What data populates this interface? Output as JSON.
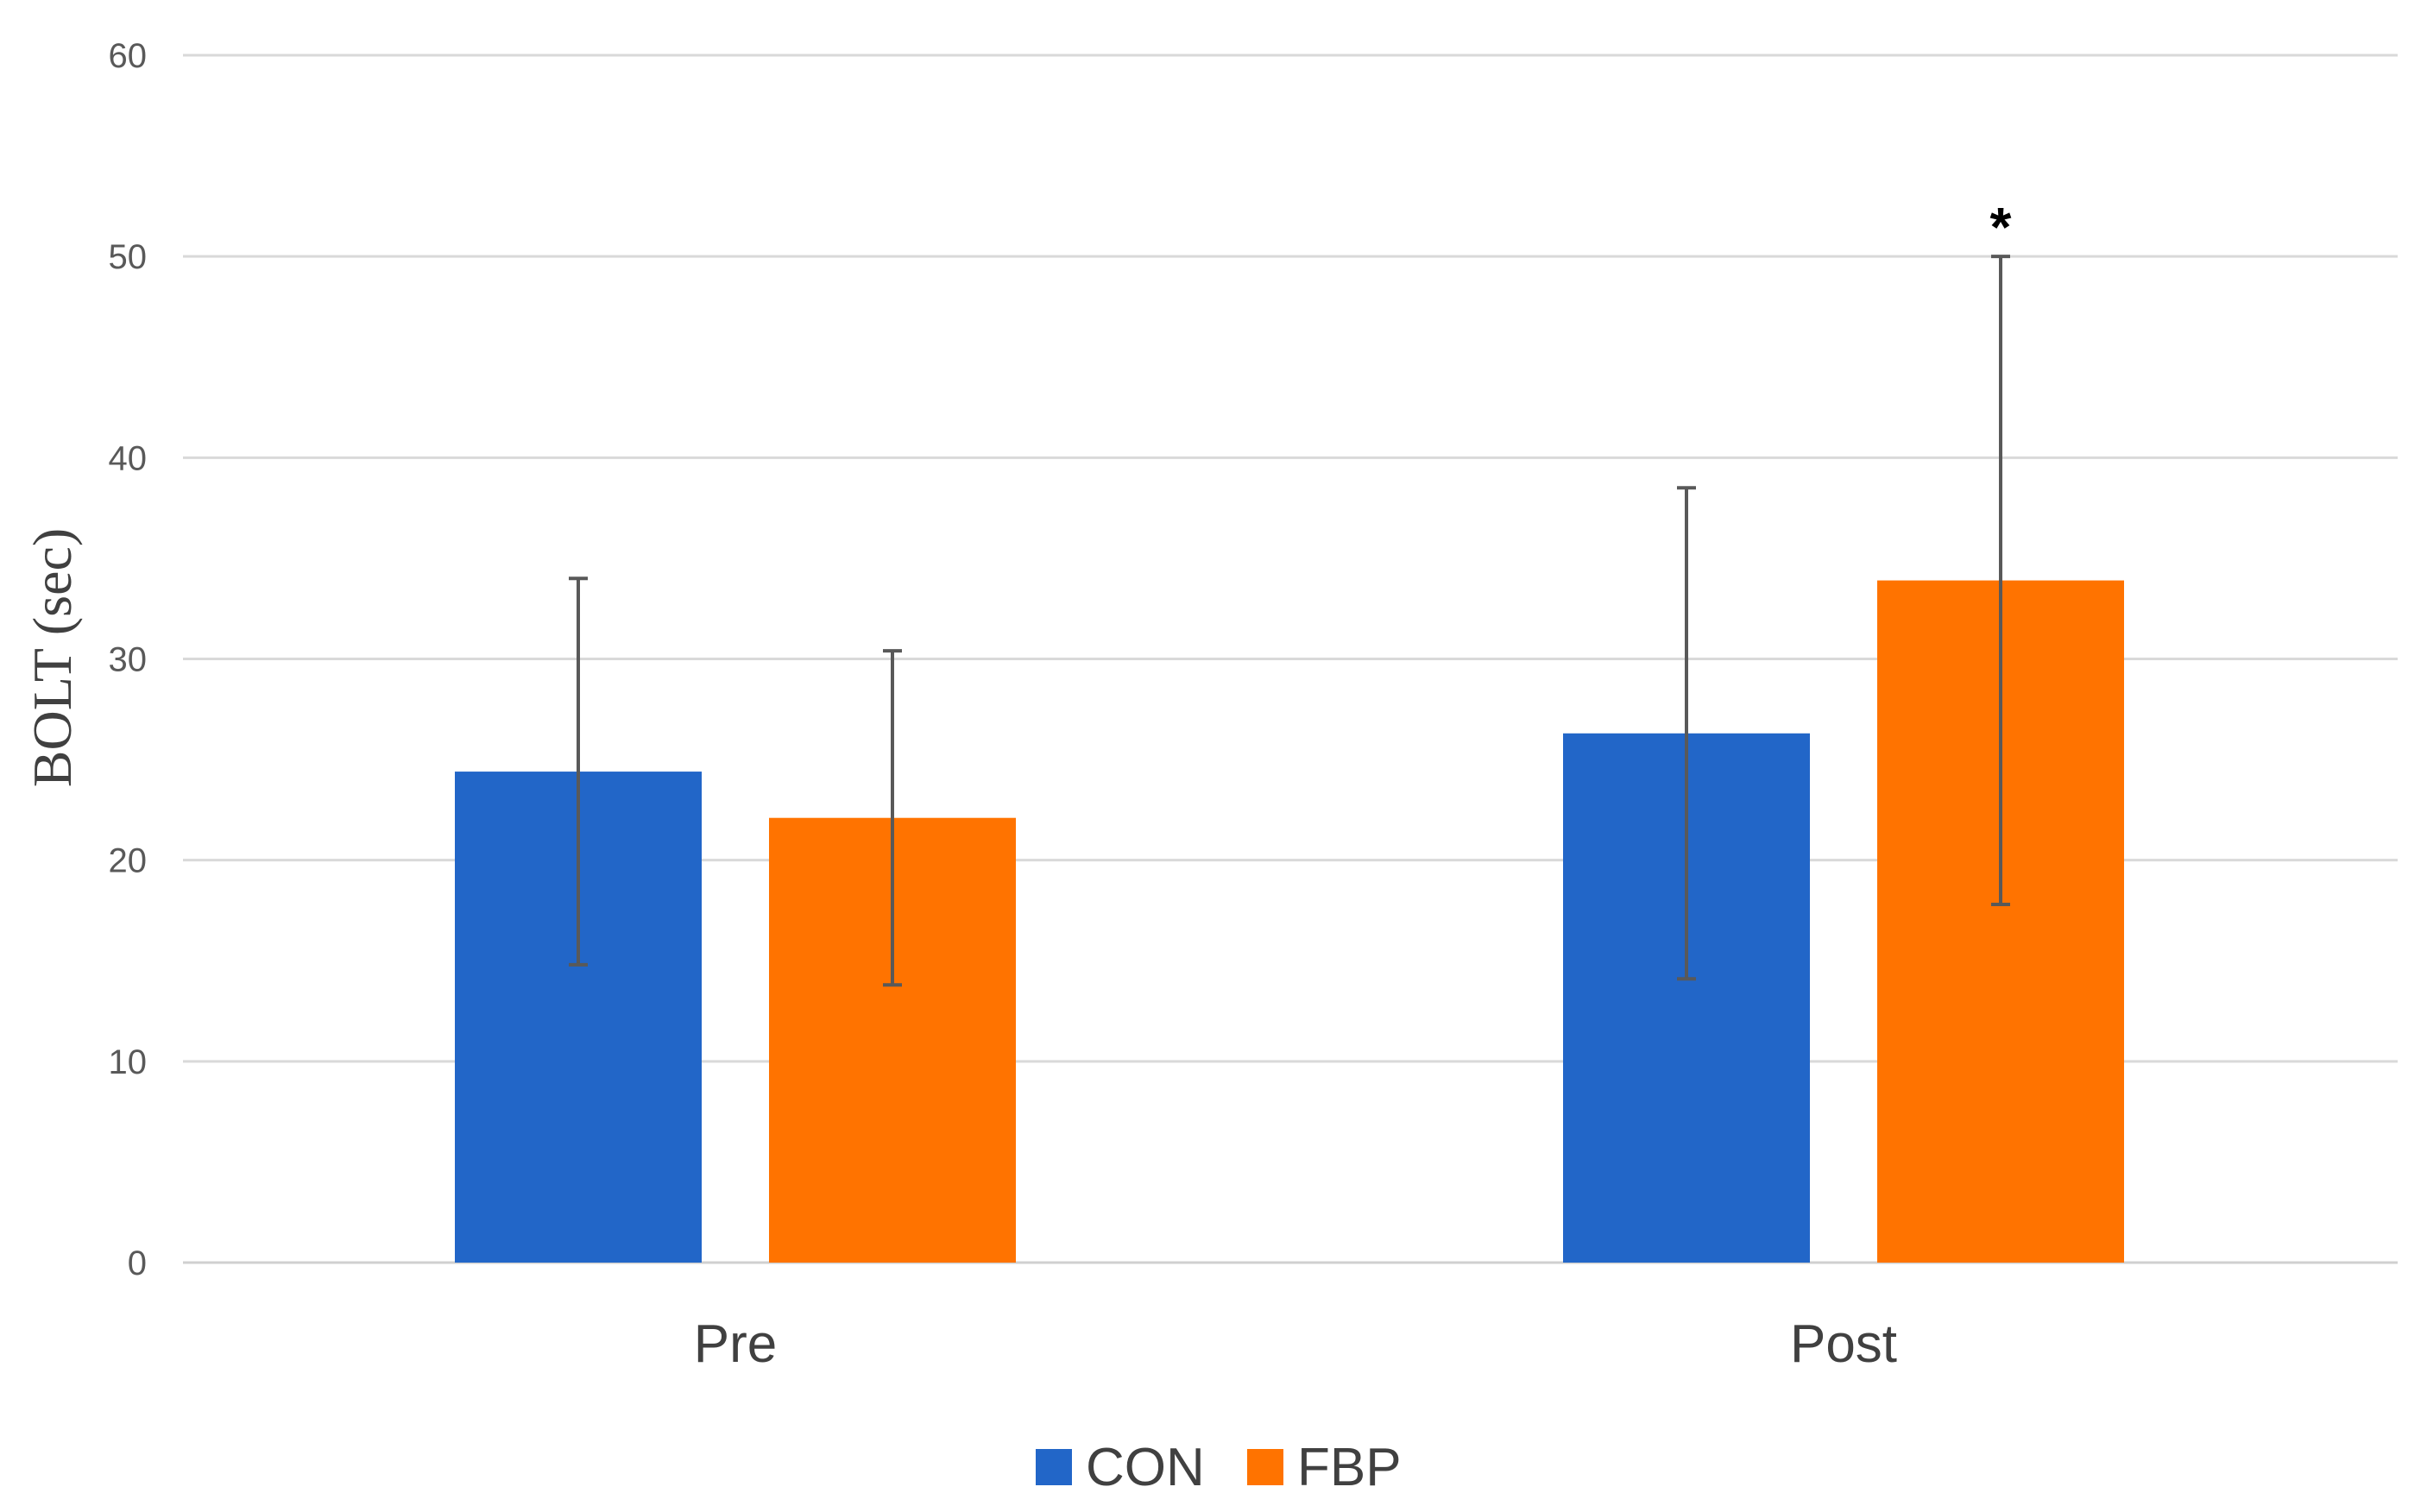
{
  "chart_data": {
    "type": "bar",
    "title": "",
    "xlabel": "",
    "ylabel": "BOLT (sec)",
    "ylim": [
      0,
      60
    ],
    "yticks": [
      0,
      10,
      20,
      30,
      40,
      50,
      60
    ],
    "grid": true,
    "legend_position": "bottom",
    "categories": [
      "Pre",
      "Post"
    ],
    "series": [
      {
        "name": "CON",
        "color": "#2266c8",
        "values": [
          24.4,
          26.3
        ],
        "errors": [
          9.6,
          12.2
        ]
      },
      {
        "name": "FBP",
        "color": "#ff7300",
        "values": [
          22.1,
          33.9
        ],
        "errors": [
          8.3,
          16.1
        ]
      }
    ],
    "annotations": [
      {
        "text": "*",
        "category": "Post",
        "series": "FBP"
      }
    ]
  }
}
